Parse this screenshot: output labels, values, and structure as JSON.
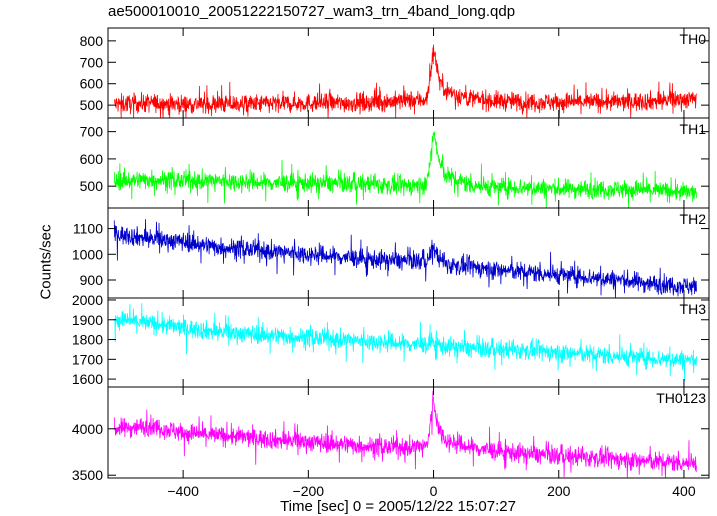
{
  "chart_data": {
    "type": "line",
    "title": "ae500010010_20051222150727_wam3_trn_4band_long.qdp",
    "xlabel": "Time [sec] 0 = 2005/12/22 15:07:27",
    "ylabel": "Counts/sec",
    "xlim": [
      -520,
      440
    ],
    "x_ticks": [
      -400,
      -200,
      0,
      200,
      400
    ],
    "grid": false,
    "colors": {
      "TH0": "#ff0000",
      "TH1": "#00ff00",
      "TH2": "#0000cc",
      "TH3": "#00ffff",
      "TH0123": "#ff00ff"
    },
    "panels": [
      {
        "name": "TH0",
        "ylim": [
          440,
          860
        ],
        "yticks": [
          500,
          600,
          700,
          800
        ],
        "x": [
          -510,
          -450,
          -400,
          -350,
          -300,
          -250,
          -200,
          -150,
          -100,
          -50,
          -20,
          -10,
          0,
          5,
          10,
          20,
          40,
          60,
          100,
          150,
          200,
          250,
          300,
          350,
          420
        ],
        "y": [
          505,
          510,
          505,
          505,
          505,
          508,
          510,
          510,
          512,
          520,
          525,
          530,
          760,
          690,
          610,
          570,
          545,
          530,
          520,
          515,
          515,
          515,
          515,
          520,
          530
        ]
      },
      {
        "name": "TH1",
        "ylim": [
          420,
          750
        ],
        "yticks": [
          500,
          600,
          700
        ],
        "x": [
          -510,
          -450,
          -400,
          -350,
          -300,
          -250,
          -200,
          -150,
          -100,
          -50,
          -20,
          -10,
          0,
          5,
          10,
          20,
          40,
          60,
          100,
          150,
          200,
          250,
          300,
          350,
          420
        ],
        "y": [
          520,
          525,
          520,
          520,
          515,
          512,
          512,
          510,
          508,
          500,
          505,
          510,
          700,
          640,
          580,
          540,
          520,
          505,
          495,
          495,
          490,
          490,
          490,
          485,
          475
        ]
      },
      {
        "name": "TH2",
        "ylim": [
          830,
          1180
        ],
        "yticks": [
          900,
          1000,
          1100
        ],
        "x": [
          -510,
          -450,
          -400,
          -350,
          -300,
          -250,
          -200,
          -150,
          -100,
          -50,
          -20,
          -10,
          0,
          5,
          10,
          20,
          40,
          60,
          100,
          150,
          200,
          250,
          300,
          350,
          420
        ],
        "y": [
          1080,
          1060,
          1050,
          1030,
          1020,
          1010,
          1000,
          990,
          980,
          975,
          975,
          975,
          1030,
          1000,
          980,
          960,
          955,
          950,
          940,
          930,
          920,
          910,
          900,
          885,
          875
        ]
      },
      {
        "name": "TH3",
        "ylim": [
          1560,
          2010
        ],
        "yticks": [
          1600,
          1700,
          1800,
          1900,
          2000
        ],
        "x": [
          -510,
          -450,
          -400,
          -350,
          -300,
          -250,
          -200,
          -150,
          -100,
          -50,
          -20,
          -10,
          0,
          5,
          10,
          20,
          40,
          60,
          100,
          150,
          200,
          250,
          300,
          350,
          420
        ],
        "y": [
          1905,
          1880,
          1860,
          1840,
          1830,
          1820,
          1810,
          1800,
          1790,
          1780,
          1775,
          1775,
          1790,
          1780,
          1770,
          1765,
          1760,
          1755,
          1750,
          1745,
          1735,
          1725,
          1715,
          1705,
          1695
        ]
      },
      {
        "name": "TH0123",
        "ylim": [
          3470,
          4450
        ],
        "yticks": [
          3500,
          4000
        ],
        "x": [
          -510,
          -450,
          -400,
          -350,
          -300,
          -250,
          -200,
          -150,
          -100,
          -50,
          -20,
          -10,
          0,
          5,
          10,
          20,
          40,
          60,
          100,
          150,
          200,
          250,
          300,
          350,
          420
        ],
        "y": [
          4000,
          4030,
          3960,
          3930,
          3910,
          3880,
          3860,
          3840,
          3810,
          3800,
          3810,
          3820,
          4300,
          4100,
          3980,
          3880,
          3830,
          3800,
          3760,
          3730,
          3710,
          3690,
          3670,
          3650,
          3630
        ]
      }
    ]
  }
}
